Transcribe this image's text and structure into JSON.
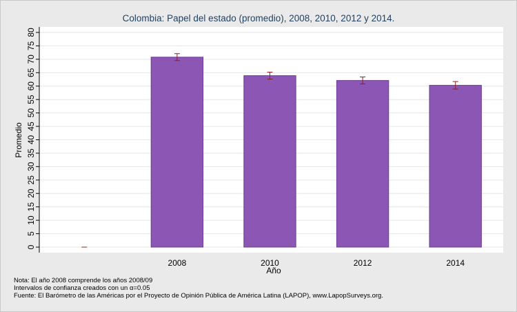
{
  "chart_data": {
    "type": "bar",
    "title": "Colombia: Papel del estado (promedio), 2008, 2010, 2012 y 2014.",
    "xlabel": "Año",
    "ylabel": "Promedio",
    "ylim": [
      0,
      80
    ],
    "yticks": [
      0,
      5,
      10,
      15,
      20,
      25,
      30,
      35,
      40,
      45,
      50,
      55,
      60,
      65,
      70,
      75,
      80
    ],
    "grid": true,
    "categories": [
      "",
      "2008",
      "2010",
      "2012",
      "2014"
    ],
    "values": [
      0,
      70.8,
      63.9,
      62.1,
      60.3
    ],
    "ci_low": [
      0,
      69.5,
      62.6,
      60.8,
      58.9
    ],
    "ci_high": [
      0,
      72.1,
      65.2,
      63.4,
      61.7
    ],
    "bar_color": "#8b56b4",
    "bar_edge_color": "#6e3d96",
    "error_color": "#8b2020"
  },
  "notes": {
    "line1": "Nota: El año 2008 comprende los años 2008/09",
    "line2_prefix": "Intervalos de confianza creados con un ",
    "line2_alpha": "α",
    "line2_suffix": "=0.05",
    "line3": "Fuente: El Barómetro de las Américas por el Proyecto de Opinión Pública de América Latina (LAPOP), www.LapopSurveys.org."
  }
}
